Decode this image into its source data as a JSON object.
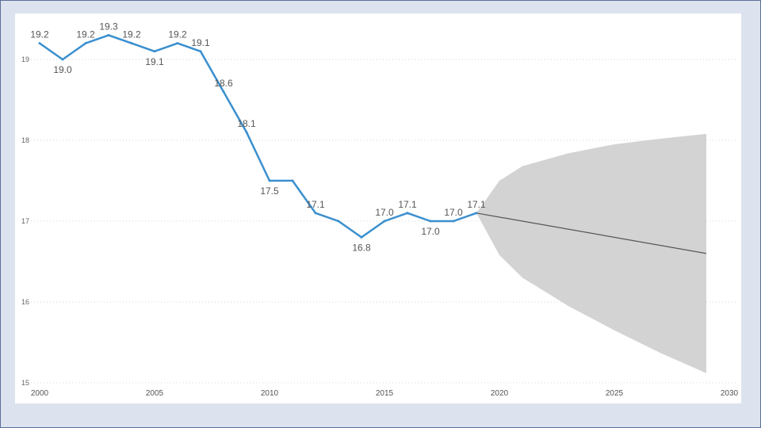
{
  "chart_data": {
    "type": "line",
    "title": "",
    "xlabel": "",
    "ylabel": "",
    "xlim": [
      2000,
      2030
    ],
    "ylim": [
      15,
      19.3
    ],
    "x_ticks": [
      "2000",
      "2005",
      "2010",
      "2015",
      "2020",
      "2025",
      "2030"
    ],
    "y_ticks": [
      "15",
      "16",
      "17",
      "18",
      "19"
    ],
    "grid": "horizontal dotted",
    "series": [
      {
        "x": [
          2000,
          2001,
          2002,
          2003,
          2004,
          2005,
          2006,
          2007,
          2008,
          2009,
          2010,
          2011,
          2012,
          2013,
          2014,
          2015,
          2016,
          2017,
          2018,
          2019
        ],
        "values": [
          19.2,
          19.0,
          19.2,
          19.3,
          19.2,
          19.1,
          19.2,
          19.1,
          18.6,
          18.1,
          17.5,
          17.5,
          17.1,
          17.0,
          16.8,
          17.0,
          17.1,
          17.0,
          17.0,
          17.1
        ],
        "data_labels": [
          "19.2",
          "19.0",
          "19.2",
          "19.3",
          "19.2",
          "19.1",
          "19.2",
          "19.1",
          "18.6",
          "18.1",
          "17.5",
          "",
          "17.1",
          "",
          "16.8",
          "17.0",
          "17.1",
          "17.0",
          "17.0",
          "17.1"
        ],
        "color": "#3a8fce"
      }
    ],
    "forecast": {
      "x": [
        2019,
        2029
      ],
      "values": [
        17.1,
        16.6
      ],
      "color": "#555555",
      "confidence_band": {
        "x": [
          2019,
          2020,
          2021,
          2023,
          2025,
          2027,
          2029
        ],
        "upper": [
          17.1,
          17.5,
          17.68,
          17.84,
          17.95,
          18.02,
          18.08
        ],
        "lower": [
          17.1,
          16.58,
          16.3,
          15.95,
          15.65,
          15.37,
          15.12
        ],
        "color": "#d3d3d3"
      }
    }
  }
}
